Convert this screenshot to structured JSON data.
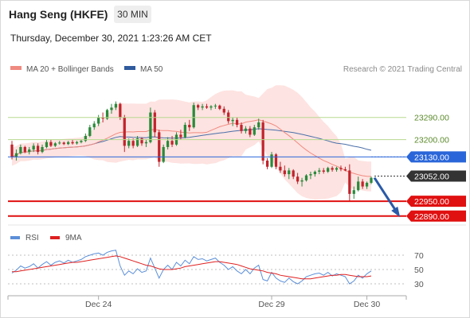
{
  "header": {
    "title": "Hang Seng (HKFE)",
    "timeframe": "30 MIN",
    "datetime": "Thursday, December 30, 2021 1:23:26 AM CET"
  },
  "legend": [
    {
      "label": "MA 20 + Bollinger Bands",
      "color": "#f08a80"
    },
    {
      "label": "MA 50",
      "color": "#2f5a9e"
    }
  ],
  "attribution": "Research © 2021 Trading Central",
  "rsi_legend": [
    {
      "label": "RSI",
      "color": "#5b8fd8"
    },
    {
      "label": "9MA",
      "color": "#e02020"
    }
  ],
  "colors": {
    "bull": "#2a8a3a",
    "bear": "#c0242c",
    "band_fill": "#fde3e1",
    "ma20": "#f08a80",
    "ma50": "#4a6fa8",
    "resistance": "#b7d88f",
    "pivot": "#2a66d9",
    "support": "#e01010",
    "current": "#333333",
    "arrow": "#2a5aa8"
  },
  "chart_data": [
    {
      "type": "candlestick",
      "title": "Hang Seng (HKFE)",
      "timeframe": "30 MIN",
      "x_ticks": [
        "Dec 24",
        "Dec 29",
        "Dec 30"
      ],
      "ylim": [
        22870,
        23460
      ],
      "levels": [
        {
          "value": 23290.0,
          "label": "23290.00",
          "kind": "resistance"
        },
        {
          "value": 23200.0,
          "label": "23200.00",
          "kind": "resistance"
        },
        {
          "value": 23130.0,
          "label": "23130.00",
          "kind": "pivot"
        },
        {
          "value": 23052.0,
          "label": "23052.00",
          "kind": "current"
        },
        {
          "value": 22950.0,
          "label": "22950.00",
          "kind": "support"
        },
        {
          "value": 22890.0,
          "label": "22890.00",
          "kind": "support"
        }
      ],
      "ohlc": [
        [
          23180,
          23195,
          23120,
          23130
        ],
        [
          23130,
          23160,
          23115,
          23145
        ],
        [
          23145,
          23180,
          23140,
          23170
        ],
        [
          23170,
          23175,
          23145,
          23150
        ],
        [
          23150,
          23170,
          23140,
          23160
        ],
        [
          23160,
          23185,
          23150,
          23175
        ],
        [
          23175,
          23185,
          23140,
          23150
        ],
        [
          23150,
          23180,
          23145,
          23170
        ],
        [
          23170,
          23200,
          23165,
          23190
        ],
        [
          23190,
          23200,
          23170,
          23175
        ],
        [
          23175,
          23190,
          23170,
          23185
        ],
        [
          23185,
          23195,
          23180,
          23188
        ],
        [
          23188,
          23192,
          23178,
          23182
        ],
        [
          23182,
          23195,
          23178,
          23190
        ],
        [
          23190,
          23200,
          23180,
          23185
        ],
        [
          23185,
          23195,
          23180,
          23190
        ],
        [
          23190,
          23200,
          23185,
          23195
        ],
        [
          23195,
          23225,
          23190,
          23215
        ],
        [
          23215,
          23260,
          23210,
          23250
        ],
        [
          23250,
          23275,
          23240,
          23265
        ],
        [
          23265,
          23300,
          23255,
          23290
        ],
        [
          23290,
          23310,
          23270,
          23285
        ],
        [
          23285,
          23325,
          23280,
          23320
        ],
        [
          23320,
          23345,
          23305,
          23330
        ],
        [
          23330,
          23355,
          23320,
          23345
        ],
        [
          23345,
          23350,
          23280,
          23290
        ],
        [
          23290,
          23300,
          23150,
          23175
        ],
        [
          23175,
          23205,
          23165,
          23195
        ],
        [
          23195,
          23205,
          23165,
          23175
        ],
        [
          23175,
          23215,
          23170,
          23205
        ],
        [
          23205,
          23210,
          23175,
          23185
        ],
        [
          23185,
          23200,
          23170,
          23190
        ],
        [
          23190,
          23330,
          23185,
          23310
        ],
        [
          23310,
          23320,
          23210,
          23230
        ],
        [
          23230,
          23240,
          23090,
          23110
        ],
        [
          23110,
          23180,
          23105,
          23170
        ],
        [
          23170,
          23210,
          23160,
          23195
        ],
        [
          23195,
          23215,
          23170,
          23180
        ],
        [
          23180,
          23230,
          23175,
          23220
        ],
        [
          23220,
          23240,
          23200,
          23210
        ],
        [
          23210,
          23270,
          23205,
          23260
        ],
        [
          23260,
          23280,
          23235,
          23250
        ],
        [
          23250,
          23350,
          23245,
          23340
        ],
        [
          23340,
          23345,
          23320,
          23330
        ],
        [
          23330,
          23345,
          23320,
          23335
        ],
        [
          23335,
          23345,
          23325,
          23330
        ],
        [
          23330,
          23340,
          23320,
          23335
        ],
        [
          23335,
          23345,
          23325,
          23338
        ],
        [
          23338,
          23342,
          23320,
          23325
        ],
        [
          23325,
          23335,
          23300,
          23310
        ],
        [
          23310,
          23320,
          23265,
          23275
        ],
        [
          23275,
          23290,
          23255,
          23280
        ],
        [
          23280,
          23290,
          23250,
          23260
        ],
        [
          23260,
          23270,
          23225,
          23235
        ],
        [
          23235,
          23255,
          23225,
          23245
        ],
        [
          23245,
          23255,
          23210,
          23220
        ],
        [
          23220,
          23260,
          23215,
          23250
        ],
        [
          23250,
          23285,
          23240,
          23270
        ],
        [
          23270,
          23280,
          23100,
          23115
        ],
        [
          23115,
          23125,
          23080,
          23090
        ],
        [
          23090,
          23150,
          23085,
          23140
        ],
        [
          23140,
          23145,
          23080,
          23090
        ],
        [
          23090,
          23110,
          23065,
          23075
        ],
        [
          23075,
          23095,
          23050,
          23060
        ],
        [
          23060,
          23085,
          23040,
          23075
        ],
        [
          23075,
          23080,
          23040,
          23050
        ],
        [
          23050,
          23065,
          23020,
          23030
        ],
        [
          23030,
          23045,
          23010,
          23035
        ],
        [
          23035,
          23060,
          23030,
          23055
        ],
        [
          23055,
          23070,
          23040,
          23060
        ],
        [
          23060,
          23075,
          23050,
          23070
        ],
        [
          23070,
          23085,
          23060,
          23075
        ],
        [
          23075,
          23085,
          23062,
          23070
        ],
        [
          23070,
          23090,
          23065,
          23085
        ],
        [
          23085,
          23092,
          23070,
          23078
        ],
        [
          23078,
          23090,
          23070,
          23085
        ],
        [
          23085,
          23095,
          23072,
          23080
        ],
        [
          23080,
          23090,
          23072,
          23075
        ],
        [
          23075,
          23100,
          22950,
          22980
        ],
        [
          22980,
          23010,
          22960,
          22995
        ],
        [
          22995,
          23050,
          22990,
          23030
        ],
        [
          23030,
          23040,
          23000,
          23010
        ],
        [
          23010,
          23030,
          23000,
          23025
        ],
        [
          23025,
          23050,
          23020,
          23045
        ]
      ]
    },
    {
      "type": "line",
      "name": "RSI",
      "x_ticks": [
        "Dec 24",
        "Dec 29",
        "Dec 30"
      ],
      "y_ticks": [
        70,
        50,
        30
      ],
      "ylim": [
        20,
        80
      ],
      "series": [
        {
          "name": "RSI",
          "values": [
            45,
            49,
            55,
            52,
            54,
            58,
            52,
            57,
            61,
            56,
            60,
            62,
            59,
            63,
            60,
            62,
            64,
            68,
            70,
            72,
            73,
            70,
            74,
            76,
            77,
            55,
            42,
            48,
            44,
            51,
            46,
            48,
            66,
            52,
            38,
            50,
            56,
            50,
            60,
            55,
            63,
            58,
            68,
            64,
            65,
            62,
            64,
            66,
            60,
            56,
            50,
            54,
            48,
            44,
            50,
            44,
            52,
            56,
            36,
            34,
            46,
            38,
            34,
            32,
            38,
            33,
            30,
            34,
            40,
            42,
            44,
            45,
            42,
            46,
            41,
            44,
            42,
            40,
            30,
            34,
            42,
            38,
            44,
            48
          ]
        },
        {
          "name": "9MA",
          "values": [
            47,
            47,
            48,
            49,
            50,
            51,
            52,
            53,
            54,
            55,
            56,
            57,
            58,
            59,
            60,
            60,
            61,
            62,
            63,
            64,
            65,
            66,
            67,
            68,
            69,
            68,
            66,
            64,
            62,
            60,
            58,
            56,
            55,
            53,
            51,
            50,
            50,
            50,
            51,
            52,
            54,
            55,
            56,
            57,
            58,
            59,
            60,
            61,
            61,
            60,
            59,
            58,
            57,
            55,
            53,
            51,
            50,
            49,
            48,
            46,
            45,
            44,
            42,
            41,
            40,
            39,
            38,
            37,
            37,
            37,
            38,
            39,
            40,
            41,
            42,
            42,
            43,
            43,
            42,
            41,
            40,
            40,
            40,
            41
          ]
        }
      ]
    }
  ]
}
